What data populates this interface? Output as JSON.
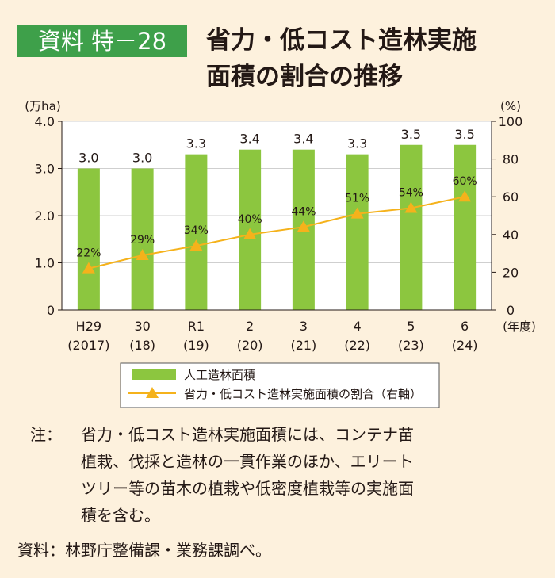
{
  "header": {
    "badge": "資料 特－28",
    "title_line1": "省力・低コスト造林実施",
    "title_line2": "面積の割合の推移"
  },
  "chart_data": {
    "type": "bar",
    "categories": [
      "H29",
      "30",
      "R1",
      "2",
      "3",
      "4",
      "5",
      "6"
    ],
    "categories_sub": [
      "(2017)",
      "(18)",
      "(19)",
      "(20)",
      "(21)",
      "(22)",
      "(23)",
      "(24)"
    ],
    "x_unit": "(年度)",
    "series": [
      {
        "name": "人工造林面積",
        "kind": "bar",
        "axis": "left",
        "values": [
          3.0,
          3.0,
          3.3,
          3.4,
          3.4,
          3.3,
          3.5,
          3.5
        ],
        "labels": [
          "3.0",
          "3.0",
          "3.3",
          "3.4",
          "3.4",
          "3.3",
          "3.5",
          "3.5"
        ],
        "color": "#8cc63f"
      },
      {
        "name": "省力・低コスト造林実施面積の割合（右軸）",
        "kind": "line",
        "axis": "right",
        "values": [
          22,
          29,
          34,
          40,
          44,
          51,
          54,
          60
        ],
        "labels": [
          "22%",
          "29%",
          "34%",
          "40%",
          "44%",
          "51%",
          "54%",
          "60%"
        ],
        "color": "#f5b21b"
      }
    ],
    "y_left": {
      "unit": "(万ha)",
      "ylim": [
        0,
        4.0
      ],
      "ticks": [
        "0",
        "1.0",
        "2.0",
        "3.0",
        "4.0"
      ]
    },
    "y_right": {
      "unit": "(%)",
      "ylim": [
        0,
        100
      ],
      "ticks": [
        "0",
        "20",
        "40",
        "60",
        "80",
        "100"
      ]
    },
    "legend_position": "bottom"
  },
  "note": {
    "prefix": "注：",
    "lines": [
      "省力・低コスト造林実施面積には、コンテナ苗",
      "植栽、伐採と造林の一貫作業のほか、エリート",
      "ツリー等の苗木の植栽や低密度植栽等の実施面",
      "積を含む。"
    ]
  },
  "source": "資料：林野庁整備課・業務課調べ。"
}
